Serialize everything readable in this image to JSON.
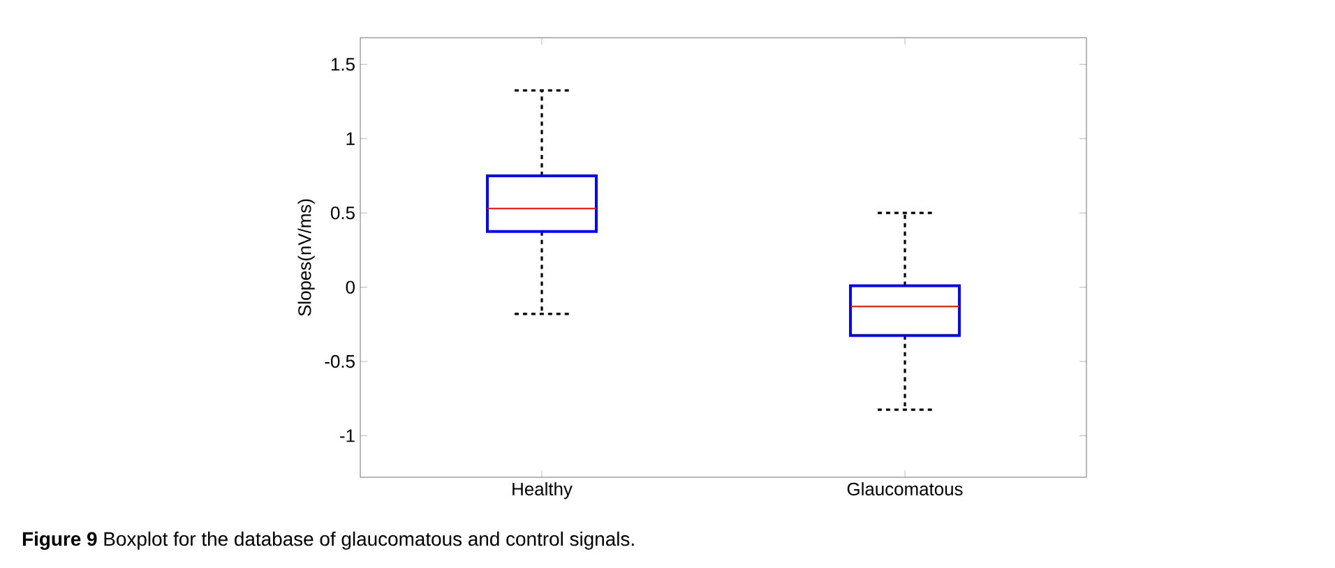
{
  "chart_data": {
    "type": "box",
    "ylabel": "Slopes(nV/ms)",
    "categories": [
      "Healthy",
      "Glaucomatous"
    ],
    "series": [
      {
        "color": "#0000ff",
        "boxes": [
          {
            "low": -0.18,
            "q1": 0.375,
            "median": 0.53,
            "q3": 0.75,
            "high": 1.325
          },
          {
            "low": -0.825,
            "q1": -0.325,
            "median": -0.13,
            "q3": 0.01,
            "high": 0.5
          }
        ]
      }
    ],
    "ylim": [
      -1.28,
      1.68
    ],
    "yticks": [
      -1,
      -0.5,
      0,
      0.5,
      1,
      1.5
    ],
    "grid": false,
    "annotations": [
      "**Figure 9** Boxplot for the database of glaucomatous and control signals."
    ]
  }
}
